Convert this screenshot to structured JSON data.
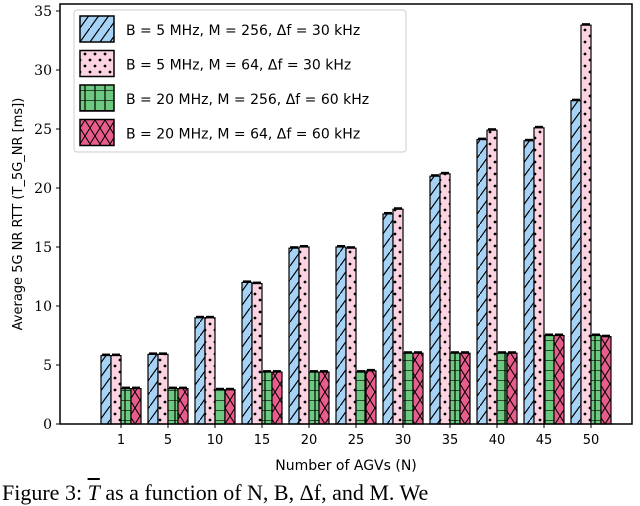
{
  "chart_data": {
    "type": "bar",
    "xlabel": "Number of AGVs (N)",
    "ylabel": "Average 5G NR RTT (T_5G_NR [ms])",
    "categories": [
      "1",
      "5",
      "10",
      "15",
      "20",
      "25",
      "30",
      "35",
      "40",
      "45",
      "50"
    ],
    "ylim": [
      0,
      35
    ],
    "yticks": [
      0,
      5,
      10,
      15,
      20,
      25,
      30,
      35
    ],
    "grid": false,
    "legend_position": "top-left",
    "error_bars": true,
    "series": [
      {
        "name": "B = 5 MHz, M = 256, Δf = 30 kHz",
        "color": "#a6d3f5",
        "hatch": "diagonal",
        "values": [
          5.8,
          5.9,
          9.0,
          12.0,
          14.9,
          15.0,
          17.8,
          21.0,
          24.1,
          24.0,
          27.4
        ]
      },
      {
        "name": "B = 5 MHz, M = 64, Δf = 30 kHz",
        "color": "#fcd3e0",
        "hatch": "dots",
        "values": [
          5.8,
          5.9,
          9.0,
          11.9,
          15.0,
          14.9,
          18.2,
          21.2,
          24.9,
          25.1,
          33.8
        ]
      },
      {
        "name": "B = 20 MHz, M = 256, Δf = 60 kHz",
        "color": "#6cc97f",
        "hatch": "horizontal",
        "values": [
          3.0,
          3.0,
          2.9,
          4.4,
          4.4,
          4.4,
          6.0,
          6.0,
          6.0,
          7.5,
          7.5
        ]
      },
      {
        "name": "B = 20 MHz, M = 64, Δf = 60 kHz",
        "color": "#e85d8b",
        "hatch": "cross",
        "values": [
          3.0,
          3.0,
          2.9,
          4.4,
          4.4,
          4.5,
          6.0,
          6.0,
          6.0,
          7.5,
          7.4
        ]
      }
    ]
  },
  "caption": {
    "prefix": "Figure 3: ",
    "symbol": "T",
    "rest": " as a function of N, B, Δf, and M. We"
  }
}
